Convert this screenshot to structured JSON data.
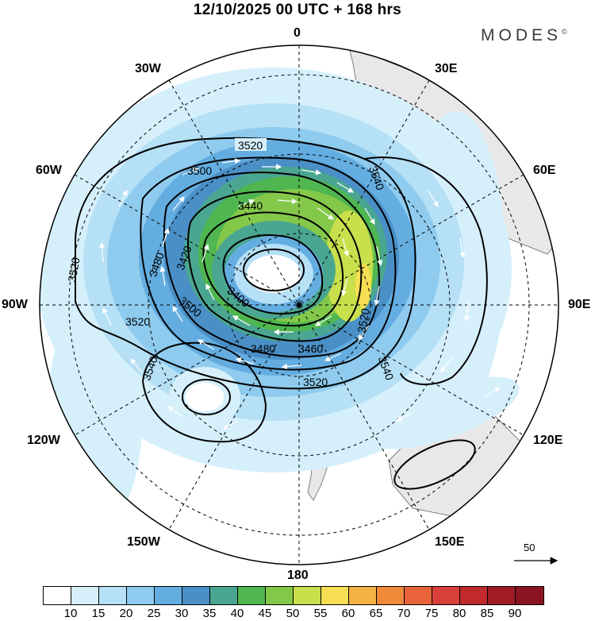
{
  "title": "12/10/2025  00 UTC  + 168 hrs",
  "brand": "MODES",
  "brand_mark": "©",
  "longitude_labels": {
    "top": "0",
    "bottom": "180",
    "left": "90W",
    "right": "90E",
    "n30w": "30W",
    "n30e": "30E",
    "n60w": "60W",
    "n60e": "60E",
    "n120w": "120W",
    "n120e": "120E",
    "n150w": "150W",
    "n150e": "150E"
  },
  "contour_labels": [
    "3520",
    "3500",
    "3440",
    "3420",
    "3480",
    "3400",
    "3500",
    "3520",
    "3480",
    "3460",
    "3520",
    "3540",
    "3540",
    "3540",
    "3520",
    "3520"
  ],
  "reference_vector": "50",
  "colorbar": {
    "ticks": [
      "10",
      "15",
      "20",
      "25",
      "30",
      "35",
      "40",
      "45",
      "50",
      "55",
      "60",
      "65",
      "70",
      "75",
      "80",
      "85",
      "90"
    ],
    "colors": [
      "#ffffff",
      "#d6f0fb",
      "#b5e0f6",
      "#8ecbee",
      "#64ade0",
      "#4a90c7",
      "#4aa690",
      "#4fb650",
      "#84c84a",
      "#c9df4c",
      "#f6df52",
      "#f4b344",
      "#ef8a3a",
      "#e8633a",
      "#d8403a",
      "#c02a2c",
      "#a01c24",
      "#8a1420"
    ]
  }
}
